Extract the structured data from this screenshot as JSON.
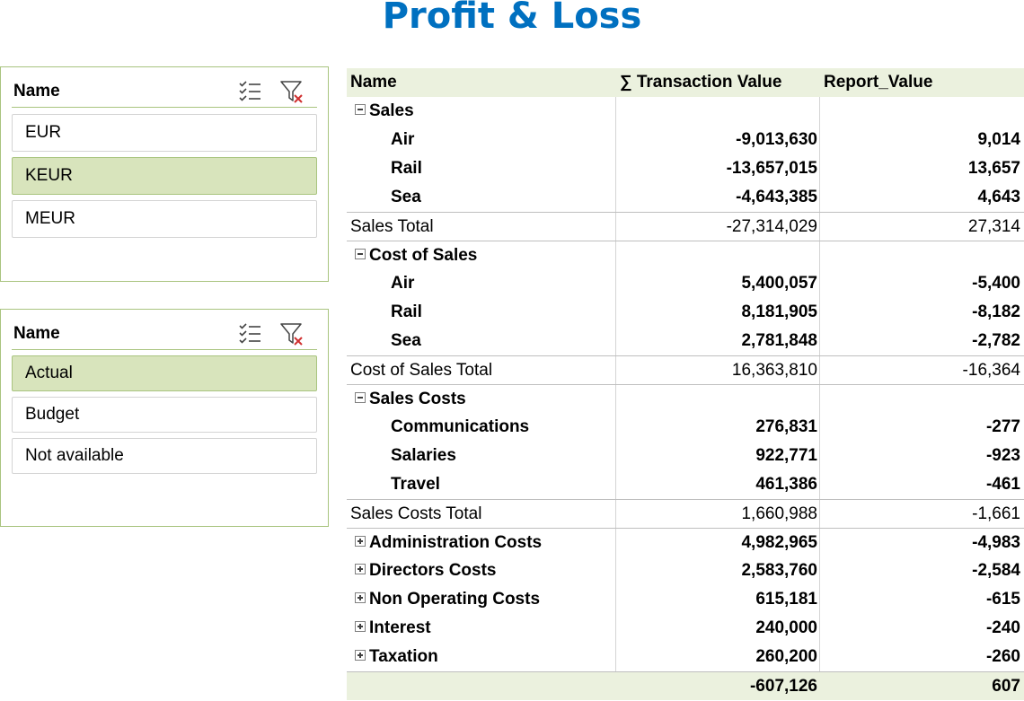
{
  "title": "Profit & Loss",
  "slicers": [
    {
      "header": "Name",
      "items": [
        {
          "label": "EUR",
          "selected": false
        },
        {
          "label": "KEUR",
          "selected": true
        },
        {
          "label": "MEUR",
          "selected": false
        }
      ]
    },
    {
      "header": "Name",
      "items": [
        {
          "label": "Actual",
          "selected": true
        },
        {
          "label": "Budget",
          "selected": false
        },
        {
          "label": "Not available",
          "selected": false
        }
      ]
    }
  ],
  "pivot": {
    "headers": [
      "Name",
      "∑ Transaction Value",
      "Report_Value"
    ],
    "sales": {
      "label": "Sales",
      "rows": [
        {
          "label": "Air",
          "tv": "-9,013,630",
          "rv": "9,014"
        },
        {
          "label": "Rail",
          "tv": "-13,657,015",
          "rv": "13,657"
        },
        {
          "label": "Sea",
          "tv": "-4,643,385",
          "rv": "4,643"
        }
      ],
      "total": {
        "label": "Sales Total",
        "tv": "-27,314,029",
        "rv": "27,314"
      }
    },
    "cost_of_sales": {
      "label": "Cost of Sales",
      "rows": [
        {
          "label": "Air",
          "tv": "5,400,057",
          "rv": "-5,400"
        },
        {
          "label": "Rail",
          "tv": "8,181,905",
          "rv": "-8,182"
        },
        {
          "label": "Sea",
          "tv": "2,781,848",
          "rv": "-2,782"
        }
      ],
      "total": {
        "label": "Cost of Sales Total",
        "tv": "16,363,810",
        "rv": "-16,364"
      }
    },
    "sales_costs": {
      "label": "Sales Costs",
      "rows": [
        {
          "label": "Communications",
          "tv": "276,831",
          "rv": "-277"
        },
        {
          "label": "Salaries",
          "tv": "922,771",
          "rv": "-923"
        },
        {
          "label": "Travel",
          "tv": "461,386",
          "rv": "-461"
        }
      ],
      "total": {
        "label": "Sales Costs Total",
        "tv": "1,660,988",
        "rv": "-1,661"
      }
    },
    "collapsed": [
      {
        "label": "Administration Costs",
        "tv": "4,982,965",
        "rv": "-4,983"
      },
      {
        "label": "Directors Costs",
        "tv": "2,583,760",
        "rv": "-2,584"
      },
      {
        "label": "Non Operating Costs",
        "tv": "615,181",
        "rv": "-615"
      },
      {
        "label": "Interest",
        "tv": "240,000",
        "rv": "-240"
      },
      {
        "label": "Taxation",
        "tv": "260,200",
        "rv": "-260"
      }
    ],
    "grand_total": {
      "tv": "-607,126",
      "rv": "607"
    }
  }
}
